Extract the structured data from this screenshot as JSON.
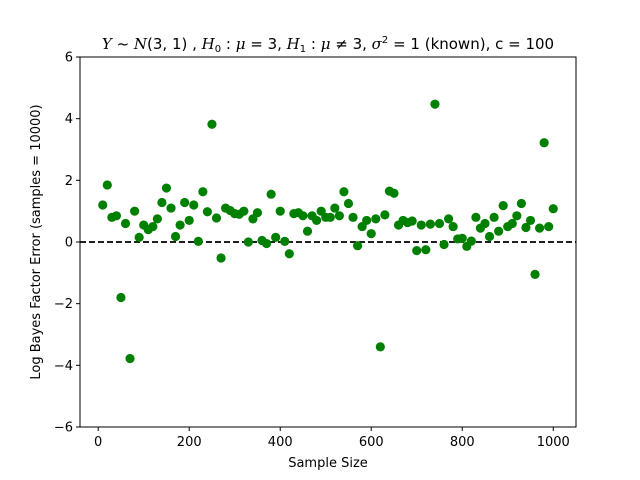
{
  "chart_data": {
    "type": "scatter",
    "title_parts": [
      {
        "text": "Y",
        "italic": true
      },
      {
        "text": " ~ ",
        "italic": false
      },
      {
        "text": "N",
        "italic": true
      },
      {
        "text": "(3, 1) , ",
        "italic": false
      },
      {
        "text": "H",
        "italic": true
      },
      {
        "text": "0",
        "italic": false,
        "sub": true
      },
      {
        "text": " : ",
        "italic": false
      },
      {
        "text": "μ",
        "italic": true
      },
      {
        "text": " = 3, ",
        "italic": false
      },
      {
        "text": "H",
        "italic": true
      },
      {
        "text": "1",
        "italic": false,
        "sub": true
      },
      {
        "text": " : ",
        "italic": false
      },
      {
        "text": "μ",
        "italic": true
      },
      {
        "text": " ≠ 3,  ",
        "italic": false
      },
      {
        "text": "σ",
        "italic": true
      },
      {
        "text": "2",
        "italic": false,
        "sup": true
      },
      {
        "text": " = 1 (known), c = 100",
        "italic": false
      }
    ],
    "xlabel": "Sample Size",
    "ylabel": "Log Bayes Factor Error (samples = 10000)",
    "xlim": [
      -40,
      1050
    ],
    "ylim": [
      -6,
      6
    ],
    "xticks": [
      0,
      200,
      400,
      600,
      800,
      1000
    ],
    "yticks": [
      -6,
      -4,
      -2,
      0,
      2,
      4,
      6
    ],
    "marker_color": "#008000",
    "reference_line": {
      "y": 0,
      "style": "dashed",
      "color": "#000000"
    },
    "series": [
      {
        "x": [
          10,
          20,
          30,
          40,
          50,
          60,
          70,
          80,
          90,
          100,
          110,
          120,
          130,
          140,
          150,
          160,
          170,
          180,
          190,
          200,
          210,
          220,
          230,
          240,
          250,
          260,
          270,
          280,
          290,
          300,
          310,
          320,
          330,
          340,
          350,
          360,
          370,
          380,
          390,
          400,
          410,
          420,
          430,
          440,
          450,
          460,
          470,
          480,
          490,
          500,
          510,
          520,
          530,
          540,
          550,
          560,
          570,
          580,
          590,
          600,
          610,
          620,
          630,
          640,
          650,
          660,
          670,
          680,
          690,
          700,
          710,
          720,
          730,
          740,
          750,
          760,
          770,
          780,
          790,
          800,
          810,
          820,
          830,
          840,
          850,
          860,
          870,
          880,
          890,
          900,
          910,
          920,
          930,
          940,
          950,
          960,
          970,
          980,
          990,
          1000
        ],
        "y": [
          1.2,
          1.85,
          0.8,
          0.85,
          -1.8,
          0.6,
          -3.78,
          1.0,
          0.15,
          0.55,
          0.4,
          0.5,
          0.75,
          1.28,
          1.75,
          1.1,
          0.18,
          0.55,
          1.28,
          0.7,
          1.2,
          0.02,
          1.63,
          0.98,
          3.82,
          0.78,
          -0.52,
          1.1,
          1.02,
          0.92,
          0.9,
          1.0,
          0.0,
          0.75,
          0.95,
          0.05,
          -0.05,
          1.55,
          0.15,
          1.0,
          0.02,
          -0.38,
          0.92,
          0.95,
          0.85,
          0.35,
          0.85,
          0.7,
          1.0,
          0.8,
          0.8,
          1.1,
          0.85,
          1.63,
          1.25,
          0.8,
          -0.12,
          0.5,
          0.7,
          0.27,
          0.75,
          -3.4,
          0.88,
          1.65,
          1.58,
          0.55,
          0.7,
          0.63,
          0.68,
          -0.28,
          0.55,
          -0.25,
          0.58,
          4.47,
          0.6,
          -0.08,
          0.75,
          0.5,
          0.1,
          0.12,
          -0.14,
          0.03,
          0.8,
          0.45,
          0.6,
          0.18,
          0.8,
          0.35,
          1.18,
          0.5,
          0.6,
          0.85,
          1.25,
          0.47,
          0.7,
          -1.05,
          0.45,
          3.22,
          0.5,
          1.08
        ]
      }
    ]
  }
}
